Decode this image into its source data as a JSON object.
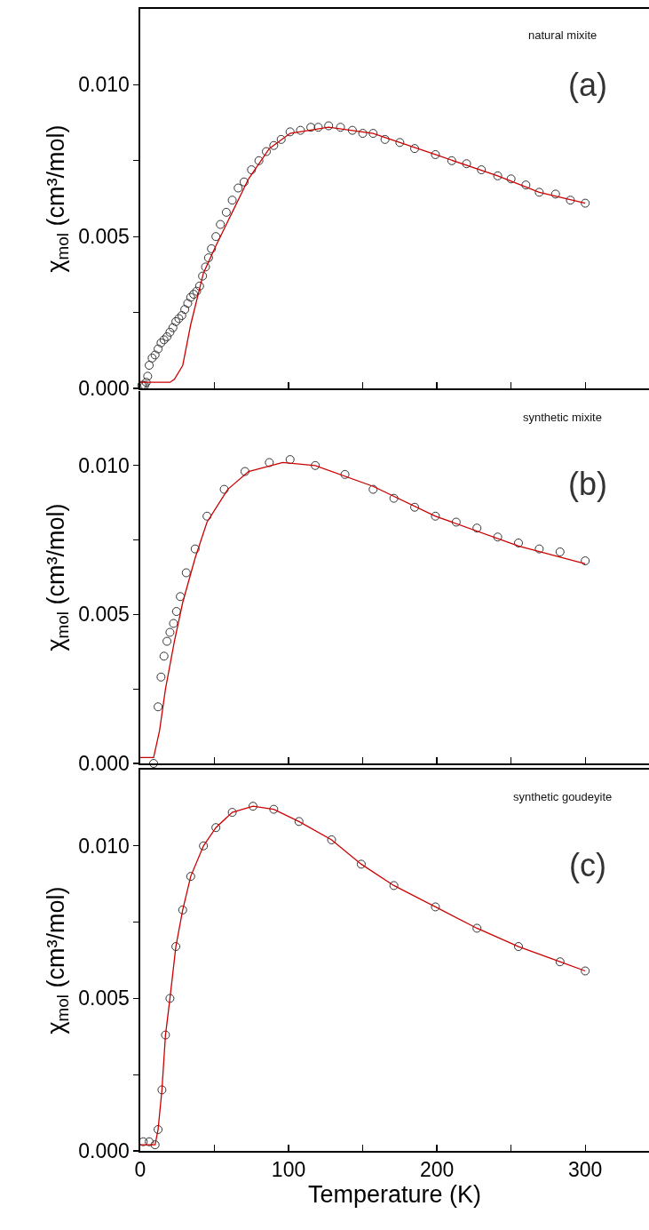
{
  "chart_data": [
    {
      "type": "scatter",
      "ylabel": "χ$_{mol}$ (cm³/mol)",
      "annotations": [
        "natural mixite",
        "(a)"
      ],
      "tick_labels": "y",
      "grid": false,
      "xlim": [
        0,
        343
      ],
      "xticks": [
        0,
        {
          "value": 50,
          "label": null
        },
        100,
        {
          "value": 150,
          "label": null
        },
        200,
        {
          "value": 250,
          "label": null
        },
        300
      ],
      "ylim": [
        0,
        0.0125
      ],
      "yticks": [
        {
          "value": 0,
          "label": "0.000"
        },
        {
          "value": 0.0025,
          "label": null
        },
        {
          "value": 0.005,
          "label": "0.005"
        },
        {
          "value": 0.0075,
          "label": null
        },
        {
          "value": 0.01,
          "label": "0.010"
        }
      ],
      "series": [
        {
          "color": "#333333",
          "marker": "circle",
          "x": [
            1,
            2,
            3,
            4,
            5,
            6,
            8,
            10,
            12,
            14,
            16,
            18,
            20,
            22,
            24,
            26,
            28,
            30,
            32,
            34,
            36,
            38,
            40,
            42,
            44,
            46,
            48,
            51,
            54,
            58,
            62,
            66,
            70,
            75,
            80,
            85,
            90,
            95,
            101,
            108,
            115,
            120,
            127,
            135,
            143,
            150,
            157,
            165,
            175,
            185,
            199,
            210,
            220,
            230,
            241,
            250,
            260,
            269,
            280,
            290,
            300
          ],
          "values": [
            0.0001,
            0.0001,
            0.0001,
            0.0002,
            0.0004,
            0.00076,
            0.001,
            0.0011,
            0.0013,
            0.0015,
            0.0016,
            0.0017,
            0.00185,
            0.002,
            0.0022,
            0.0023,
            0.0024,
            0.0026,
            0.0028,
            0.003,
            0.0031,
            0.0032,
            0.00337,
            0.0037,
            0.004,
            0.0043,
            0.0046,
            0.005,
            0.0054,
            0.0058,
            0.0062,
            0.0066,
            0.0068,
            0.0072,
            0.0075,
            0.0078,
            0.008,
            0.0082,
            0.00845,
            0.0085,
            0.0086,
            0.0086,
            0.00865,
            0.0086,
            0.0085,
            0.0084,
            0.0084,
            0.0082,
            0.0081,
            0.0079,
            0.0077,
            0.0075,
            0.0074,
            0.0072,
            0.007,
            0.0069,
            0.0067,
            0.00646,
            0.0064,
            0.0062,
            0.0061
          ]
        },
        {
          "type": "line",
          "marker": "none",
          "color": "#cc0000",
          "x": [
            0,
            10,
            20,
            23,
            28.6,
            34,
            42.6,
            51,
            62,
            73,
            87,
            101,
            127,
            157,
            199,
            241,
            269,
            300
          ],
          "values": [
            0.0002,
            0.0002,
            0.0002,
            0.0003,
            0.00075,
            0.0021,
            0.0038,
            0.0047,
            0.0058,
            0.0069,
            0.0079,
            0.0084,
            0.0086,
            0.0084,
            0.0077,
            0.007,
            0.00646,
            0.0061
          ]
        }
      ]
    },
    {
      "type": "scatter",
      "ylabel": "χ$_{mol}$ (cm³/mol)",
      "annotations": [
        "synthetic mixite",
        "(b)"
      ],
      "tick_labels": "y",
      "grid": false,
      "xlim": [
        0,
        343
      ],
      "xticks": [
        0,
        {
          "value": 50,
          "label": null
        },
        100,
        {
          "value": 150,
          "label": null
        },
        200,
        {
          "value": 250,
          "label": null
        },
        300
      ],
      "ylim": [
        0,
        0.0125
      ],
      "yticks": [
        {
          "value": 0,
          "label": "0.000"
        },
        {
          "value": 0.0025,
          "label": null
        },
        {
          "value": 0.005,
          "label": "0.005"
        },
        {
          "value": 0.0075,
          "label": null
        },
        {
          "value": 0.01,
          "label": "0.010"
        }
      ],
      "series": [
        {
          "color": "#333333",
          "marker": "circle",
          "x": [
            9,
            12,
            14,
            16,
            18,
            20,
            22.4,
            24.4,
            27,
            31,
            37,
            45,
            56.6,
            70.6,
            87,
            101,
            118,
            138,
            157,
            171,
            185,
            199,
            213,
            227,
            241,
            255,
            269,
            283,
            300
          ],
          "values": [
            0,
            0.0019,
            0.0029,
            0.0036,
            0.0041,
            0.0044,
            0.0047,
            0.0051,
            0.0056,
            0.0064,
            0.0072,
            0.0083,
            0.0092,
            0.0098,
            0.0101,
            0.0102,
            0.01,
            0.0097,
            0.0092,
            0.0089,
            0.0086,
            0.0083,
            0.0081,
            0.0079,
            0.0076,
            0.0074,
            0.0072,
            0.0071,
            0.0068
          ]
        },
        {
          "type": "line",
          "marker": "none",
          "color": "#cc0000",
          "x": [
            0,
            9,
            13,
            17,
            23,
            28.6,
            37,
            45,
            59,
            73,
            96,
            118,
            157,
            199,
            255,
            300
          ],
          "values": [
            0.0002,
            0.0002,
            0.0011,
            0.0025,
            0.0041,
            0.0054,
            0.0069,
            0.0081,
            0.0092,
            0.0098,
            0.0101,
            0.01,
            0.0093,
            0.0083,
            0.0073,
            0.0067
          ]
        }
      ]
    },
    {
      "type": "scatter",
      "xlabel": "Temperature (K)",
      "ylabel": "χ$_{mol}$ (cm³/mol)",
      "annotations": [
        "synthetic goudeyite",
        "(c)"
      ],
      "grid": false,
      "xlim": [
        0,
        343
      ],
      "xticks": [
        0,
        {
          "value": 50,
          "label": null
        },
        100,
        {
          "value": 150,
          "label": null
        },
        200,
        {
          "value": 250,
          "label": null
        },
        300
      ],
      "ylim": [
        0,
        0.0125
      ],
      "yticks": [
        {
          "value": 0,
          "label": "0.000"
        },
        {
          "value": 0.0025,
          "label": null
        },
        {
          "value": 0.005,
          "label": "0.005"
        },
        {
          "value": 0.0075,
          "label": null
        },
        {
          "value": 0.01,
          "label": "0.010"
        }
      ],
      "series": [
        {
          "color": "#333333",
          "marker": "circle",
          "x": [
            2,
            6,
            10,
            12,
            14.6,
            17,
            20,
            24,
            28.6,
            34,
            42.6,
            51,
            62,
            76,
            90,
            107,
            129,
            149,
            171,
            199,
            227,
            255,
            283,
            300
          ],
          "values": [
            0.0003,
            0.0003,
            0.0002,
            0.0007,
            0.002,
            0.0038,
            0.005,
            0.0067,
            0.0079,
            0.009,
            0.01,
            0.0106,
            0.0111,
            0.0113,
            0.0112,
            0.0108,
            0.0102,
            0.0094,
            0.0087,
            0.008,
            0.0073,
            0.0067,
            0.0062,
            0.0059
          ]
        },
        {
          "type": "line",
          "marker": "none",
          "color": "#cc0000",
          "x": [
            0,
            10,
            12,
            14.6,
            17,
            20,
            24,
            28.6,
            34,
            42.6,
            51,
            62,
            76,
            90,
            107,
            129,
            149,
            171,
            199,
            227,
            255,
            283,
            300
          ],
          "values": [
            0.0002,
            0.0002,
            0.0007,
            0.002,
            0.0038,
            0.005,
            0.0067,
            0.0079,
            0.009,
            0.01,
            0.0106,
            0.0111,
            0.0113,
            0.0112,
            0.0108,
            0.0102,
            0.0094,
            0.0087,
            0.008,
            0.0073,
            0.0067,
            0.0062,
            0.0059
          ]
        }
      ]
    }
  ]
}
